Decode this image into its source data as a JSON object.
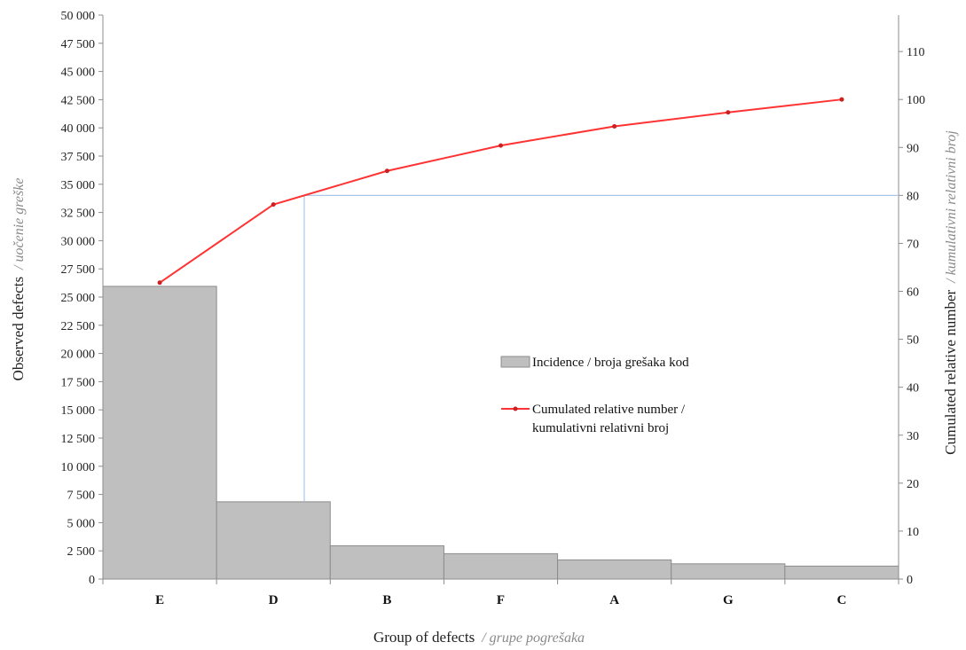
{
  "chart_data": {
    "type": "bar",
    "categories": [
      "E",
      "D",
      "B",
      "F",
      "A",
      "G",
      "C"
    ],
    "series": [
      {
        "name": "Incidence / broja grešaka kod",
        "type": "bar",
        "axis": "left",
        "values": [
          25950,
          6850,
          2950,
          2250,
          1700,
          1350,
          1150
        ]
      },
      {
        "name_lines": [
          "Cumulated relative number /",
          "kumulativni relativni broj"
        ],
        "type": "line",
        "axis": "right",
        "values": [
          61.8,
          78.1,
          85.1,
          90.4,
          94.4,
          97.3,
          100
        ]
      }
    ],
    "reference_line": {
      "y_right": 80
    },
    "xlabel": "Group of defects",
    "xlabel_sub": "/ grupe pogrešaka",
    "ylabel_left": "Observed defects",
    "ylabel_left_sub": "/ uočenie greške",
    "ylabel_right": "Cumulated relative number",
    "ylabel_right_sub": "/ kumulativni relativni broj",
    "ylim_left": [
      0,
      50000
    ],
    "ylim_right": [
      0,
      117.6
    ],
    "yticks_left": [
      "0",
      "2 500",
      "5 000",
      "7 500",
      "10 000",
      "12 500",
      "15 000",
      "17 500",
      "20 000",
      "22 500",
      "25 000",
      "27 500",
      "30 000",
      "32 500",
      "35 000",
      "37 500",
      "40 000",
      "42 500",
      "45 000",
      "47 500",
      "50 000"
    ],
    "yticks_right": [
      "0",
      "10",
      "20",
      "30",
      "40",
      "50",
      "60",
      "70",
      "80",
      "90",
      "100",
      "110"
    ],
    "legend_position": "center-right",
    "grid": false,
    "colors": {
      "bar_fill": "#bfbfbf",
      "bar_stroke": "#8c8c8c",
      "line": "#ff3333",
      "marker": "#cc1f1f",
      "reference": "#a9c8ea",
      "axis": "#8c8c8c"
    }
  }
}
